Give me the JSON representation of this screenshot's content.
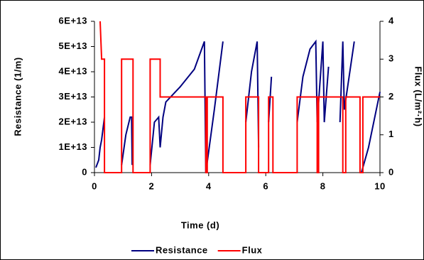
{
  "chart_data": {
    "type": "line",
    "xlabel": "Time (d)",
    "ylabel": "Resistance (1/m)",
    "y2label": "Flux (L/m²·h)",
    "xlim": [
      0,
      10
    ],
    "xticks": [
      0,
      2,
      4,
      6,
      8,
      10
    ],
    "ylim": [
      0,
      60000000000000.0
    ],
    "yticks": [
      0,
      {
        "value": 10000000000000.0,
        "label": "1E+13"
      },
      {
        "value": 20000000000000.0,
        "label": "2E+13"
      },
      {
        "value": 30000000000000.0,
        "label": "3E+13"
      },
      {
        "value": 40000000000000.0,
        "label": "4E+13"
      },
      {
        "value": 50000000000000.0,
        "label": "5E+13"
      },
      {
        "value": 60000000000000.0,
        "label": "6E+13"
      }
    ],
    "y2lim": [
      0,
      4
    ],
    "y2ticks": [
      0,
      1,
      2,
      3,
      4
    ],
    "legend": "bottom",
    "series": [
      {
        "name": "Resistance",
        "color": "#000080",
        "x": [
          0.05,
          0.15,
          0.2,
          0.25,
          0.35,
          0.5,
          0.95,
          1.1,
          1.25,
          1.3,
          1.32,
          1.6,
          1.95,
          2.1,
          2.25,
          2.3,
          2.4,
          2.5,
          3.0,
          3.5,
          3.85,
          3.9,
          4.2,
          4.5,
          4.9,
          5.3,
          5.5,
          5.7,
          5.75,
          5.9,
          6.1,
          6.2,
          6.6,
          7.1,
          7.3,
          7.55,
          7.75,
          7.8,
          8.0,
          8.05,
          8.2,
          8.4,
          8.6,
          8.7,
          8.75,
          9.1,
          9.2,
          9.35,
          9.6,
          10
        ],
        "values": [
          2000000000000.0,
          5000000000000.0,
          10000000000000.0,
          13000000000000.0,
          22000000000000.0,
          null,
          3000000000000.0,
          15000000000000.0,
          22000000000000.0,
          22000000000000.0,
          3000000000000.0,
          null,
          3000000000000.0,
          20000000000000.0,
          22000000000000.0,
          10000000000000.0,
          22000000000000.0,
          28000000000000.0,
          34000000000000.0,
          41000000000000.0,
          52000000000000.0,
          0,
          25000000000000.0,
          52000000000000.0,
          null,
          20000000000000.0,
          40000000000000.0,
          52000000000000.0,
          10000000000000.0,
          null,
          20000000000000.0,
          38000000000000.0,
          null,
          20000000000000.0,
          38000000000000.0,
          49000000000000.0,
          52000000000000.0,
          20000000000000.0,
          52000000000000.0,
          20000000000000.0,
          42000000000000.0,
          null,
          20000000000000.0,
          52000000000000.0,
          25000000000000.0,
          52000000000000.0,
          null,
          0,
          10000000000000.0,
          32000000000000.0
        ]
      },
      {
        "name": "Flux",
        "color": "#ff0000",
        "axis": "y2",
        "x": [
          0.2,
          0.25,
          0.35,
          0.35,
          0.95,
          0.95,
          1.35,
          1.35,
          1.95,
          1.95,
          2.3,
          2.3,
          3.9,
          3.9,
          3.95,
          3.95,
          4.5,
          4.5,
          5.3,
          5.3,
          5.75,
          5.75,
          6.1,
          6.1,
          6.25,
          6.25,
          7.1,
          7.1,
          7.8,
          7.8,
          7.85,
          7.85,
          8.7,
          8.7,
          8.8,
          8.8,
          9.3,
          9.3,
          9.4,
          9.4,
          10
        ],
        "values": [
          4,
          3,
          3,
          0,
          0,
          3,
          3,
          0,
          0,
          3,
          3,
          2,
          2,
          0,
          0,
          2,
          2,
          0,
          0,
          2,
          2,
          0,
          0,
          2,
          2,
          0,
          0,
          2,
          2,
          0,
          0,
          2,
          2,
          0,
          0,
          2,
          2,
          0,
          0,
          2,
          2
        ]
      }
    ]
  }
}
